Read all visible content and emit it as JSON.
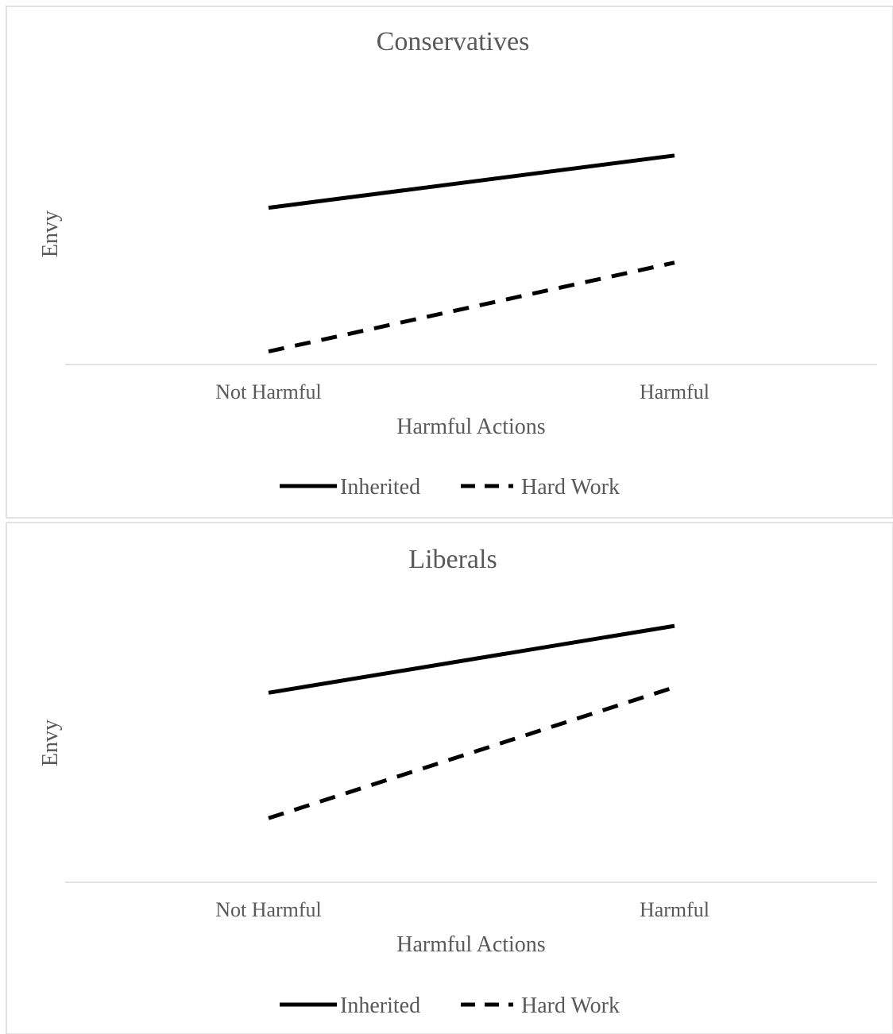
{
  "chart_data": [
    {
      "type": "line",
      "title": "Conservatives",
      "xlabel": "Harmful Actions",
      "ylabel": "Envy",
      "categories": [
        "Not Harmful",
        "Harmful"
      ],
      "ylim": [
        0,
        10
      ],
      "series": [
        {
          "name": "Inherited",
          "values": [
            6.0,
            8.0
          ],
          "style": "solid"
        },
        {
          "name": "Hard Work",
          "values": [
            0.5,
            3.9
          ],
          "style": "dashed"
        }
      ],
      "grid": false,
      "legend": "bottom"
    },
    {
      "type": "line",
      "title": "Liberals",
      "xlabel": "Harmful Actions",
      "ylabel": "Envy",
      "categories": [
        "Not Harmful",
        "Harmful"
      ],
      "ylim": [
        0,
        10
      ],
      "series": [
        {
          "name": "Inherited",
          "values": [
            6.8,
            9.2
          ],
          "style": "solid"
        },
        {
          "name": "Hard Work",
          "values": [
            2.3,
            7.0
          ],
          "style": "dashed"
        }
      ],
      "grid": false,
      "legend": "bottom"
    }
  ],
  "colors": {
    "line": "#000000",
    "text": "#595959",
    "axis": "#d9d9d9",
    "border": "#d9d9d9"
  }
}
